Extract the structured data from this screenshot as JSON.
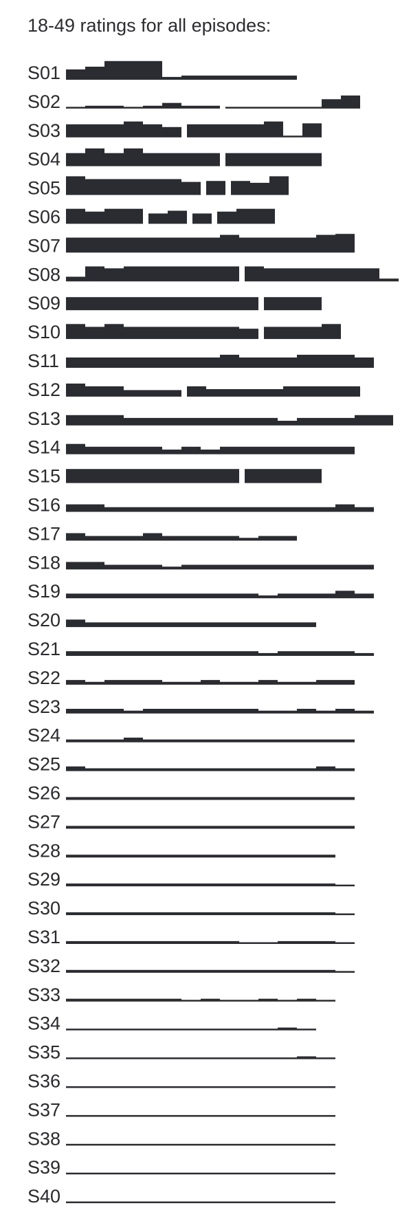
{
  "title": "18-49 ratings for all episodes:",
  "colors": {
    "bar": "#2b2c31",
    "text": "#2a2a2e",
    "background": "#ffffff"
  },
  "chart_data": {
    "type": "bar",
    "title": "18-49 ratings for all episodes:",
    "xlabel": "",
    "ylabel": "",
    "ylim": [
      0,
      5
    ],
    "grid": false,
    "legend": "none",
    "note": "Relative bar heights per episode; values estimated in arbitrary units. null marks a gap between episodes.",
    "seasons": [
      {
        "label": "S01",
        "values": [
          2.2,
          2.8,
          4.0,
          4.0,
          4.0,
          0.6,
          0.9,
          0.9,
          0.9,
          0.9,
          0.9,
          0.9
        ]
      },
      {
        "label": "S02",
        "values": [
          0.3,
          0.6,
          0.6,
          0.3,
          0.6,
          1.2,
          0.6,
          0.6,
          null,
          0.3,
          0.3,
          0.3,
          0.3,
          0.3,
          2.0,
          2.8
        ]
      },
      {
        "label": "S03",
        "values": [
          2.8,
          2.8,
          2.8,
          3.4,
          2.8,
          2.2,
          null,
          2.8,
          2.8,
          2.8,
          2.8,
          3.4,
          0.3,
          3.0
        ]
      },
      {
        "label": "S04",
        "values": [
          2.8,
          3.8,
          2.8,
          3.8,
          2.8,
          2.8,
          2.8,
          2.8,
          null,
          2.8,
          2.8,
          2.8,
          2.8,
          2.8
        ]
      },
      {
        "label": "S05",
        "values": [
          4.0,
          3.4,
          3.4,
          3.4,
          3.4,
          3.4,
          2.8,
          null,
          3.0,
          null,
          3.0,
          2.6,
          4.0
        ]
      },
      {
        "label": "S06",
        "values": [
          3.2,
          2.6,
          3.2,
          3.2,
          null,
          2.2,
          2.8,
          null,
          2.2,
          null,
          2.6,
          3.2,
          3.2
        ]
      },
      {
        "label": "S07",
        "values": [
          3.2,
          3.2,
          3.2,
          3.2,
          3.2,
          3.2,
          3.2,
          3.2,
          3.8,
          3.2,
          3.2,
          3.2,
          3.2,
          3.8,
          4.0
        ]
      },
      {
        "label": "S08",
        "values": [
          1.0,
          3.2,
          2.8,
          3.2,
          3.2,
          3.2,
          3.2,
          3.2,
          3.2,
          null,
          3.2,
          2.8,
          2.8,
          2.8,
          2.8,
          2.8,
          2.8,
          0.6
        ]
      },
      {
        "label": "S09",
        "values": [
          2.8,
          2.8,
          2.8,
          2.8,
          2.8,
          2.8,
          2.8,
          2.8,
          2.8,
          2.8,
          null,
          2.8,
          2.8,
          2.8
        ]
      },
      {
        "label": "S10",
        "values": [
          3.2,
          2.6,
          3.2,
          2.6,
          2.6,
          2.6,
          2.6,
          2.6,
          2.6,
          2.2,
          null,
          2.6,
          2.6,
          2.6,
          3.2
        ]
      },
      {
        "label": "S11",
        "values": [
          2.2,
          2.2,
          2.2,
          2.2,
          2.2,
          2.2,
          2.2,
          2.2,
          2.8,
          2.2,
          2.2,
          2.2,
          2.8,
          2.8,
          2.8,
          2.2
        ]
      },
      {
        "label": "S12",
        "values": [
          2.8,
          2.2,
          2.2,
          1.4,
          1.4,
          1.4,
          null,
          2.2,
          1.6,
          1.6,
          1.6,
          1.6,
          2.2,
          2.2,
          2.2,
          2.2
        ]
      },
      {
        "label": "S13",
        "values": [
          2.2,
          2.2,
          2.2,
          1.6,
          1.6,
          1.6,
          1.6,
          1.6,
          1.6,
          1.6,
          1.6,
          1.0,
          1.6,
          1.6,
          1.6,
          2.2,
          2.2
        ]
      },
      {
        "label": "S14",
        "values": [
          2.2,
          1.6,
          1.6,
          1.6,
          1.6,
          1.0,
          1.6,
          1.0,
          1.6,
          1.6,
          1.6,
          1.6,
          1.6,
          1.6,
          1.6
        ]
      },
      {
        "label": "S15",
        "values": [
          3.0,
          3.0,
          3.0,
          3.0,
          3.0,
          3.0,
          3.0,
          3.0,
          3.0,
          null,
          3.0,
          3.0,
          3.0,
          3.0
        ]
      },
      {
        "label": "S16",
        "values": [
          1.6,
          1.6,
          1.0,
          1.0,
          1.0,
          1.0,
          1.0,
          1.0,
          1.0,
          1.0,
          1.0,
          1.0,
          1.0,
          1.0,
          1.6,
          1.0
        ]
      },
      {
        "label": "S17",
        "values": [
          1.6,
          1.0,
          1.0,
          1.0,
          1.6,
          1.0,
          1.0,
          1.0,
          1.0,
          0.6,
          1.0,
          1.0
        ]
      },
      {
        "label": "S18",
        "values": [
          1.6,
          1.6,
          1.0,
          1.0,
          1.0,
          0.6,
          1.0,
          1.0,
          1.0,
          1.0,
          1.0,
          1.0,
          1.0,
          1.0,
          1.0,
          1.0
        ]
      },
      {
        "label": "S19",
        "values": [
          1.0,
          1.0,
          1.0,
          1.0,
          1.0,
          1.0,
          1.0,
          1.0,
          1.0,
          1.0,
          0.6,
          1.0,
          1.0,
          1.0,
          1.6,
          1.0
        ]
      },
      {
        "label": "S20",
        "values": [
          1.6,
          1.0,
          1.0,
          1.0,
          1.0,
          1.0,
          1.0,
          1.0,
          1.0,
          1.0,
          1.0,
          1.0,
          1.0
        ]
      },
      {
        "label": "S21",
        "values": [
          1.0,
          1.0,
          1.0,
          1.0,
          1.0,
          1.0,
          1.0,
          1.0,
          1.0,
          1.0,
          0.6,
          1.0,
          1.0,
          1.0,
          1.0,
          0.6
        ]
      },
      {
        "label": "S22",
        "values": [
          1.0,
          0.6,
          1.0,
          1.0,
          1.0,
          0.6,
          0.6,
          1.0,
          0.6,
          0.6,
          1.0,
          0.6,
          0.6,
          1.0,
          1.0
        ]
      },
      {
        "label": "S23",
        "values": [
          1.0,
          1.0,
          1.0,
          0.6,
          1.0,
          1.0,
          1.0,
          1.0,
          1.0,
          1.0,
          0.6,
          0.6,
          1.0,
          0.6,
          1.0,
          0.6
        ]
      },
      {
        "label": "S24",
        "values": [
          0.6,
          0.6,
          0.6,
          1.0,
          0.6,
          0.6,
          0.6,
          0.6,
          0.6,
          0.6,
          0.6,
          0.6,
          0.6,
          0.6,
          0.6
        ]
      },
      {
        "label": "S25",
        "values": [
          1.0,
          0.6,
          0.6,
          0.6,
          0.6,
          0.6,
          0.6,
          0.6,
          0.6,
          0.6,
          0.6,
          0.6,
          0.6,
          1.0,
          0.6
        ]
      },
      {
        "label": "S26",
        "values": [
          0.6,
          0.6,
          0.6,
          0.6,
          0.6,
          0.6,
          0.6,
          0.6,
          0.6,
          0.6,
          0.6,
          0.6,
          0.6,
          0.6,
          0.6
        ]
      },
      {
        "label": "S27",
        "values": [
          0.6,
          0.6,
          0.6,
          0.6,
          0.6,
          0.6,
          0.6,
          0.6,
          0.6,
          0.6,
          0.6,
          0.6,
          0.6,
          0.6,
          0.6
        ]
      },
      {
        "label": "S28",
        "values": [
          0.6,
          0.6,
          0.6,
          0.6,
          0.6,
          0.6,
          0.6,
          0.6,
          0.6,
          0.6,
          0.6,
          0.6,
          0.6,
          0.6
        ]
      },
      {
        "label": "S29",
        "values": [
          0.6,
          0.6,
          0.6,
          0.6,
          0.6,
          0.6,
          0.6,
          0.6,
          0.6,
          0.6,
          0.6,
          0.6,
          0.6,
          0.6,
          0.3
        ]
      },
      {
        "label": "S30",
        "values": [
          0.6,
          0.6,
          0.6,
          0.6,
          0.6,
          0.6,
          0.6,
          0.6,
          0.6,
          0.6,
          0.6,
          0.6,
          0.6,
          0.6,
          0.3
        ]
      },
      {
        "label": "S31",
        "values": [
          0.6,
          0.6,
          0.6,
          0.6,
          0.6,
          0.6,
          0.6,
          0.6,
          0.6,
          0.3,
          0.3,
          0.6,
          0.6,
          0.6,
          0.3
        ]
      },
      {
        "label": "S32",
        "values": [
          0.6,
          0.6,
          0.6,
          0.6,
          0.6,
          0.6,
          0.6,
          0.6,
          0.6,
          0.6,
          0.6,
          0.6,
          0.6,
          0.6,
          0.3
        ]
      },
      {
        "label": "S33",
        "values": [
          0.6,
          0.6,
          0.6,
          0.6,
          0.6,
          0.6,
          0.3,
          0.6,
          0.3,
          0.3,
          0.6,
          0.3,
          0.6,
          0.3
        ]
      },
      {
        "label": "S34",
        "values": [
          0.25,
          0.25,
          0.25,
          0.25,
          0.25,
          0.25,
          0.25,
          0.25,
          0.25,
          0.25,
          0.25,
          0.6,
          0.25
        ]
      },
      {
        "label": "S35",
        "values": [
          0.25,
          0.25,
          0.25,
          0.25,
          0.25,
          0.25,
          0.25,
          0.25,
          0.25,
          0.25,
          0.25,
          0.25,
          0.6,
          0.25
        ]
      },
      {
        "label": "S36",
        "values": [
          0.25,
          0.25,
          0.25,
          0.25,
          0.25,
          0.25,
          0.25,
          0.25,
          0.25,
          0.25,
          0.25,
          0.25,
          0.25,
          0.25
        ]
      },
      {
        "label": "S37",
        "values": [
          0.25,
          0.25,
          0.25,
          0.25,
          0.25,
          0.25,
          0.25,
          0.25,
          0.25,
          0.25,
          0.25,
          0.25,
          0.25,
          0.25
        ]
      },
      {
        "label": "S38",
        "values": [
          0.25,
          0.25,
          0.25,
          0.25,
          0.25,
          0.25,
          0.25,
          0.25,
          0.25,
          0.25,
          0.25,
          0.25,
          0.25,
          0.25
        ]
      },
      {
        "label": "S39",
        "values": [
          0.25,
          0.25,
          0.25,
          0.25,
          0.25,
          0.25,
          0.25,
          0.25,
          0.25,
          0.25,
          0.25,
          0.25,
          0.25,
          0.25
        ]
      },
      {
        "label": "S40",
        "values": [
          0.25,
          0.25,
          0.25,
          0.25,
          0.25,
          0.25,
          0.25,
          0.25,
          0.25,
          0.25,
          0.25,
          0.25,
          0.25,
          0.25
        ]
      }
    ]
  }
}
